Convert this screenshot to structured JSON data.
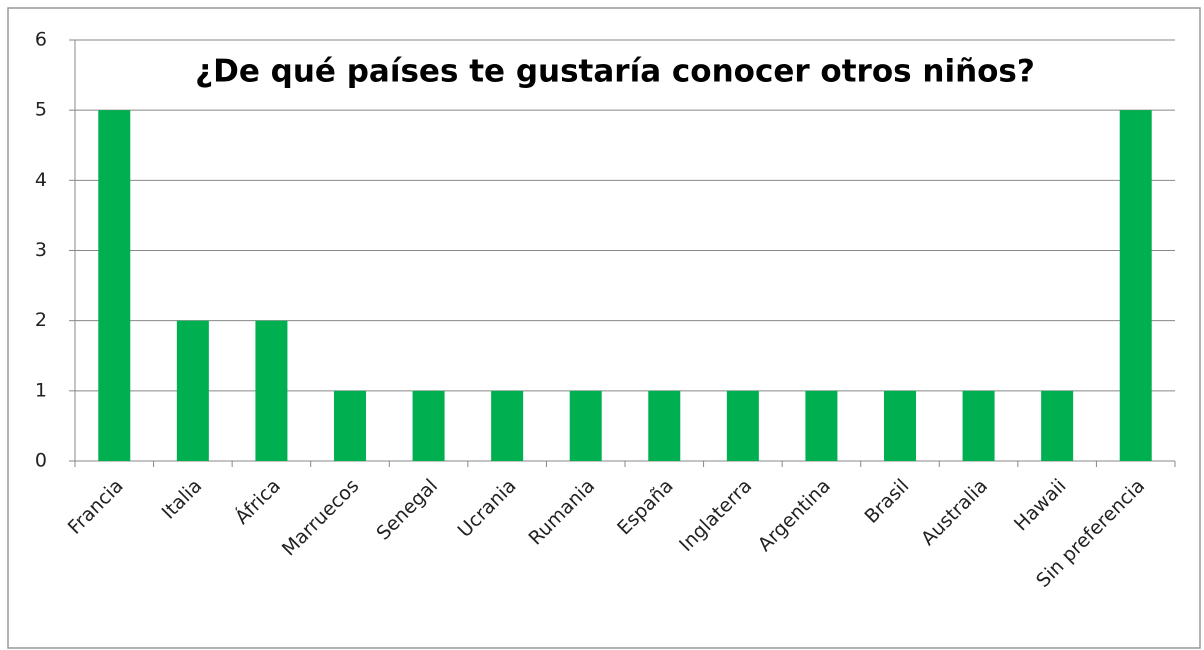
{
  "chart_data": {
    "type": "bar",
    "title": "¿De qué países te gustaría conocer otros niños?",
    "categories": [
      "Francia",
      "Italia",
      "África",
      "Marruecos",
      "Senegal",
      "Ucrania",
      "Rumania",
      "España",
      "Inglaterra",
      "Argentina",
      "Brasil",
      "Australia",
      "Hawaii",
      "Sin preferencia"
    ],
    "values": [
      5,
      2,
      2,
      1,
      1,
      1,
      1,
      1,
      1,
      1,
      1,
      1,
      1,
      5
    ],
    "color": "#00b050",
    "ylim": [
      0,
      6
    ],
    "yticks": [
      0,
      1,
      2,
      3,
      4,
      5,
      6
    ],
    "grid": true
  }
}
